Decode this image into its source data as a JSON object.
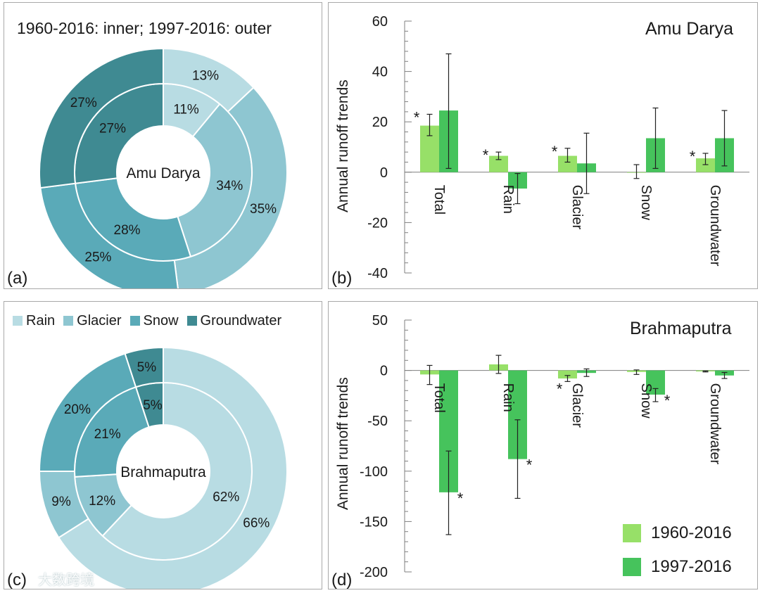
{
  "colors": {
    "rain": "#b8dce3",
    "glacier": "#8ec6d1",
    "snow": "#5aaab8",
    "groundwater": "#3f8a92",
    "series_1960": "#97e068",
    "series_1997": "#46c35c"
  },
  "panel_a": {
    "label": "(a)",
    "header": "1960-2016: inner;   1997-2016: outer",
    "center_label": "Amu Darya"
  },
  "panel_b": {
    "label": "(b)",
    "title": "Amu Darya",
    "ylabel": "Annual runoff trends"
  },
  "panel_c": {
    "label": "(c)",
    "center_label": "Brahmaputra",
    "watermark": "大数跨境"
  },
  "panel_d": {
    "label": "(d)",
    "title": "Brahmaputra",
    "ylabel": "Annual runoff trends"
  },
  "legend_c": [
    {
      "label": "Rain",
      "color": "#b8dce3"
    },
    {
      "label": "Glacier",
      "color": "#8ec6d1"
    },
    {
      "label": "Snow",
      "color": "#5aaab8"
    },
    {
      "label": "Groundwater",
      "color": "#3f8a92"
    }
  ],
  "legend_d": [
    {
      "label": "1960-2016",
      "color": "#97e068"
    },
    {
      "label": "1997-2016",
      "color": "#46c35c"
    }
  ],
  "chart_data": [
    {
      "id": "a",
      "type": "pie",
      "title": "Amu Darya",
      "categories": [
        "Rain",
        "Glacier",
        "Snow",
        "Groundwater"
      ],
      "series": [
        {
          "name": "1960-2016",
          "ring": "inner",
          "values": [
            11,
            34,
            28,
            27
          ],
          "labels": [
            "11%",
            "34%",
            "28%",
            "27%"
          ]
        },
        {
          "name": "1997-2016",
          "ring": "outer",
          "values": [
            13,
            35,
            25,
            27
          ],
          "labels": [
            "13%",
            "35%",
            "25%",
            "27%"
          ]
        }
      ]
    },
    {
      "id": "b",
      "type": "bar",
      "title": "Amu Darya",
      "ylabel": "Annual runoff trends",
      "categories": [
        "Total",
        "Rain",
        "Glacier",
        "Snow",
        "Groundwater"
      ],
      "ylim": [
        -40,
        60
      ],
      "yticks": [
        -40,
        -20,
        0,
        20,
        40,
        60
      ],
      "series": [
        {
          "name": "1960-2016",
          "values": [
            18.5,
            6.5,
            6.5,
            0,
            5.5
          ],
          "err_low": [
            14.5,
            5,
            4,
            -2.5,
            3
          ],
          "err_high": [
            23,
            8,
            9.5,
            3,
            7.5
          ],
          "significant": [
            true,
            true,
            true,
            false,
            true
          ]
        },
        {
          "name": "1997-2016",
          "values": [
            24.5,
            -6.5,
            3.5,
            13.5,
            13.5
          ],
          "err_low": [
            1.5,
            -12.5,
            -8.5,
            1.5,
            2.5
          ],
          "err_high": [
            47,
            -0.5,
            15.5,
            25.5,
            24.5
          ],
          "significant": [
            false,
            false,
            false,
            false,
            false
          ]
        }
      ]
    },
    {
      "id": "c",
      "type": "pie",
      "title": "Brahmaputra",
      "categories": [
        "Rain",
        "Glacier",
        "Snow",
        "Groundwater"
      ],
      "series": [
        {
          "name": "1960-2016",
          "ring": "inner",
          "values": [
            62,
            12,
            21,
            5
          ],
          "labels": [
            "62%",
            "12%",
            "21%",
            "5%"
          ]
        },
        {
          "name": "1997-2016",
          "ring": "outer",
          "values": [
            66,
            9,
            20,
            5
          ],
          "labels": [
            "66%",
            "9%",
            "20%",
            "5%"
          ]
        }
      ]
    },
    {
      "id": "d",
      "type": "bar",
      "title": "Brahmaputra",
      "ylabel": "Annual runoff trends",
      "categories": [
        "Total",
        "Rain",
        "Glacier",
        "Snow",
        "Groundwater"
      ],
      "ylim": [
        -200,
        50
      ],
      "yticks": [
        -200,
        -150,
        -100,
        -50,
        0,
        50
      ],
      "series": [
        {
          "name": "1960-2016",
          "values": [
            -4,
            6,
            -8,
            -1.5,
            -1
          ],
          "err_low": [
            -14,
            -3,
            -11,
            -4,
            -1.5
          ],
          "err_high": [
            5,
            15,
            -5,
            0.5,
            -0.5
          ],
          "significant": [
            false,
            false,
            true,
            false,
            false
          ]
        },
        {
          "name": "1997-2016",
          "values": [
            -121,
            -88,
            -2.5,
            -24,
            -5
          ],
          "err_low": [
            -163,
            -127,
            -6,
            -31,
            -8
          ],
          "err_high": [
            -80,
            -49,
            1.5,
            -18,
            -2
          ],
          "significant": [
            true,
            true,
            false,
            true,
            false
          ]
        }
      ]
    }
  ]
}
